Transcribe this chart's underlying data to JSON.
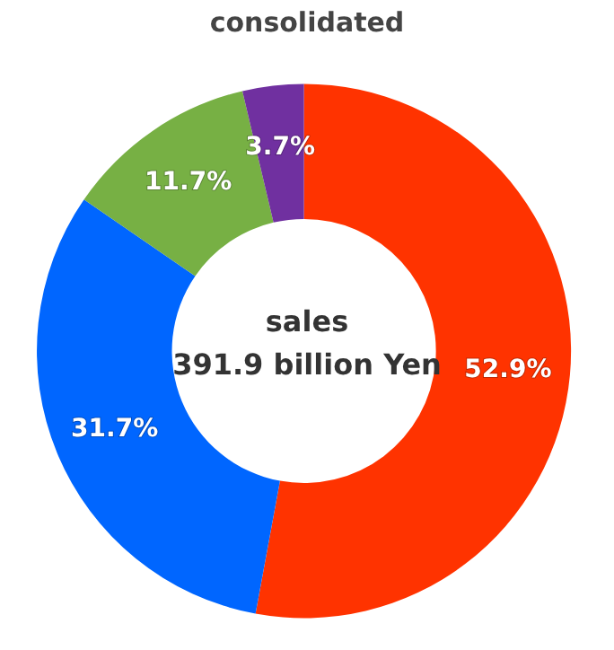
{
  "chart_data": {
    "type": "donut",
    "title": "consolidated",
    "categories": [
      null,
      null,
      null,
      null
    ],
    "values": [
      52.9,
      31.7,
      11.7,
      3.7
    ],
    "colors": [
      "#ff3300",
      "#0066ff",
      "#77b044",
      "#7030a0"
    ],
    "value_labels": [
      "52.9%",
      "31.7%",
      "11.7%",
      "3.7%"
    ],
    "annotations": [
      "sales",
      "391.9 billion Yen"
    ]
  }
}
